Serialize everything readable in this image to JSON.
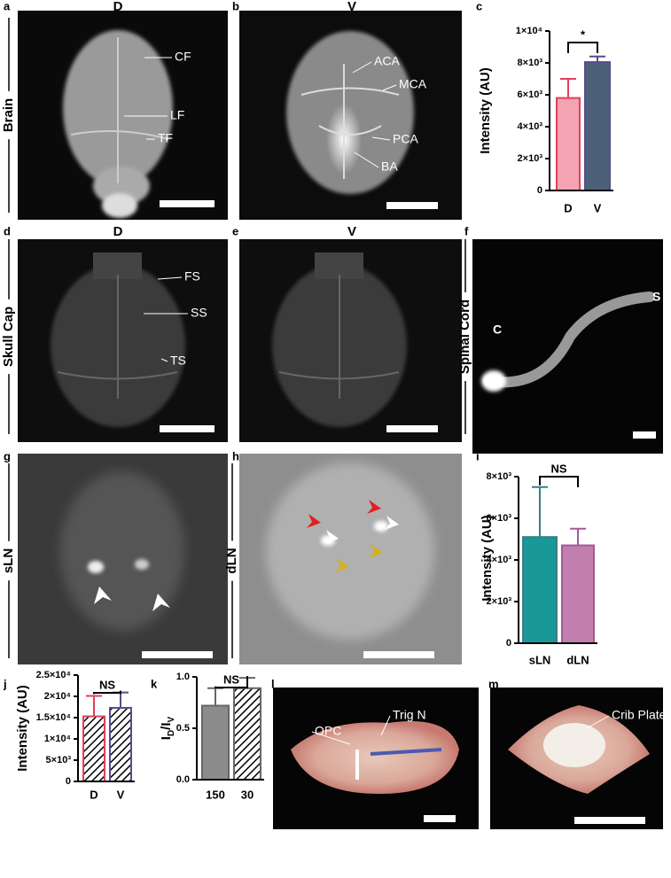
{
  "image_panels": [
    {
      "letter": "a",
      "heading": "D",
      "side_label": "Brain",
      "annotations": [
        "CF",
        "LF",
        "TF"
      ]
    },
    {
      "letter": "b",
      "heading": "V",
      "annotations": [
        "ACA",
        "MCA",
        "PCA",
        "BA"
      ]
    },
    {
      "letter": "d",
      "heading": "D",
      "side_label": "Skull Cap",
      "annotations": [
        "FS",
        "SS",
        "TS"
      ]
    },
    {
      "letter": "e",
      "heading": "V",
      "annotations": []
    },
    {
      "letter": "f",
      "side_label": "Spinal Cord",
      "annotations": [
        "C",
        "S"
      ]
    },
    {
      "letter": "g",
      "side_label": "sLN",
      "annotations": []
    },
    {
      "letter": "h",
      "side_label": "dLN",
      "annotations": []
    },
    {
      "letter": "l",
      "annotations": [
        "OPC",
        "Trig N"
      ]
    },
    {
      "letter": "m",
      "annotations": [
        "Crib Plate"
      ]
    }
  ],
  "chart_data": [
    {
      "type": "bar",
      "letter": "c",
      "y_label": "Intensity (AU)",
      "categories": [
        "D",
        "V"
      ],
      "values": [
        5800,
        8050
      ],
      "errors": [
        1200,
        350
      ],
      "colors": [
        "#f4a3b3",
        "#4c6178"
      ],
      "edge_colors": [
        "#e0405a",
        "#5b4a8c"
      ],
      "hatched": [
        false,
        false
      ],
      "ylim": [
        0,
        10000
      ],
      "yticks": [
        0,
        {
          "value": 2000,
          "label": "2×10³"
        },
        {
          "value": 4000,
          "label": "4×10³"
        },
        {
          "value": 6000,
          "label": "6×10³"
        },
        {
          "value": 8000,
          "label": "8×10³"
        },
        {
          "value": 10000,
          "label": "1×10⁴"
        }
      ],
      "significance": "*"
    },
    {
      "type": "bar",
      "letter": "i",
      "y_label": "Intensity (AU)",
      "categories": [
        "sLN",
        "dLN"
      ],
      "values": [
        5100,
        4700
      ],
      "errors": [
        2400,
        800
      ],
      "colors": [
        "#1a9797",
        "#c07fae"
      ],
      "edge_colors": [
        "#3a7f86",
        "#a65a96"
      ],
      "hatched": [
        false,
        false
      ],
      "ylim": [
        0,
        8000
      ],
      "yticks": [
        0,
        {
          "value": 2000,
          "label": "2×10³"
        },
        {
          "value": 4000,
          "label": "4×10³"
        },
        {
          "value": 6000,
          "label": "6×10³"
        },
        {
          "value": 8000,
          "label": "8×10³"
        }
      ],
      "significance": "NS"
    },
    {
      "type": "bar",
      "letter": "j",
      "y_label": "Intensity (AU)",
      "categories": [
        "D",
        "V"
      ],
      "values": [
        15300,
        17300
      ],
      "errors": [
        4800,
        3600
      ],
      "colors": [
        "#f08aa0",
        "#3d4d6d"
      ],
      "edge_colors": [
        "#e0405a",
        "#5b4a8c"
      ],
      "hatched": [
        true,
        true
      ],
      "ylim": [
        0,
        25000
      ],
      "yticks": [
        0,
        {
          "value": 5000,
          "label": "5×10³"
        },
        {
          "value": 10000,
          "label": "1×10⁴"
        },
        {
          "value": 15000,
          "label": "1.5×10⁴"
        },
        {
          "value": 20000,
          "label": "2×10⁴"
        },
        {
          "value": 25000,
          "label": "2.5×10⁴"
        }
      ],
      "significance": "NS"
    },
    {
      "type": "bar",
      "letter": "k",
      "y_label_parts": [
        "I",
        "D",
        "/I",
        "V"
      ],
      "categories": [
        "150",
        "30"
      ],
      "values": [
        0.72,
        0.89
      ],
      "errors": [
        0.17,
        0.1
      ],
      "colors": [
        "#8c8c8c",
        "#8c8c8c"
      ],
      "edge_colors": [
        "#666666",
        "#666666"
      ],
      "hatched": [
        false,
        true
      ],
      "ylim": [
        0,
        1
      ],
      "yticks": [
        {
          "value": 0,
          "label": "0.0"
        },
        0.5,
        {
          "value": 1,
          "label": "1.0"
        }
      ],
      "significance": "NS"
    }
  ]
}
